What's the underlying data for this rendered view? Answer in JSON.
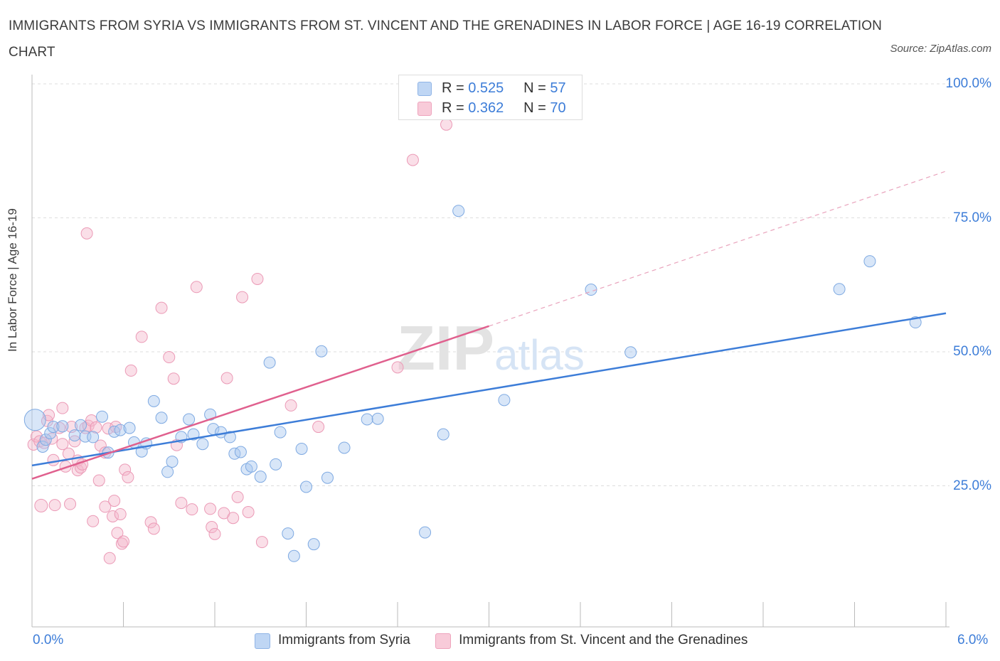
{
  "title": "IMMIGRANTS FROM SYRIA VS IMMIGRANTS FROM ST. VINCENT AND THE GRENADINES IN LABOR FORCE | AGE 16-19 CORRELATION CHART",
  "source": "Source: ZipAtlas.com",
  "watermark": "ZIPatlas",
  "legend_top": {
    "rows": [
      {
        "r_label": "R = ",
        "r_value": "0.525",
        "n_label": "N = ",
        "n_value": "57",
        "color": "#a9c8f0"
      },
      {
        "r_label": "R = ",
        "r_value": "0.362",
        "n_label": "N = ",
        "n_value": "70",
        "color": "#f5b8cc"
      }
    ]
  },
  "legend_bottom": [
    "Immigrants from Syria",
    "Immigrants from St. Vincent and the Grenadines"
  ],
  "colors": {
    "blue": "#3d7dd8",
    "blue_fill": "#a9c8f0",
    "pink": "#e0608e",
    "pink_fill": "#f5b8cc",
    "grid": "#dddddd",
    "axis_label": "#3d7dd8"
  },
  "chart_data": {
    "type": "scatter",
    "title": "IMMIGRANTS FROM SYRIA VS IMMIGRANTS FROM ST. VINCENT AND THE GRENADINES IN LABOR FORCE | AGE 16-19 CORRELATION CHART",
    "xlabel": "",
    "ylabel": "In Labor Force | Age 16-19",
    "xlim": [
      0,
      6
    ],
    "ylim": [
      0,
      100
    ],
    "x_tick_labels": [
      "0.0%",
      "6.0%"
    ],
    "y_tick_labels": [
      "25.0%",
      "50.0%",
      "75.0%",
      "100.0%"
    ],
    "y_ticks": [
      25,
      50,
      75,
      100
    ],
    "grid": true,
    "legend_position": "bottom",
    "series": [
      {
        "name": "Immigrants from Syria",
        "color": "#3d7dd8",
        "R": 0.525,
        "N": 57,
        "trend": {
          "x": [
            0,
            6
          ],
          "y": [
            28.8,
            57.2
          ],
          "dashed_extension": false
        },
        "points": [
          [
            0.02,
            37.3
          ],
          [
            0.07,
            32.3
          ],
          [
            0.09,
            33.6
          ],
          [
            0.12,
            34.8
          ],
          [
            0.14,
            36.0
          ],
          [
            0.2,
            36.1
          ],
          [
            0.28,
            34.4
          ],
          [
            0.32,
            36.3
          ],
          [
            0.35,
            34.2
          ],
          [
            0.4,
            34.1
          ],
          [
            0.46,
            37.9
          ],
          [
            0.5,
            31.2
          ],
          [
            0.54,
            35.1
          ],
          [
            0.58,
            35.4
          ],
          [
            0.64,
            35.8
          ],
          [
            0.67,
            33.1
          ],
          [
            0.72,
            31.4
          ],
          [
            0.75,
            32.9
          ],
          [
            0.8,
            40.8
          ],
          [
            0.85,
            37.7
          ],
          [
            0.89,
            27.6
          ],
          [
            0.92,
            29.5
          ],
          [
            0.98,
            34.1
          ],
          [
            1.03,
            37.4
          ],
          [
            1.06,
            34.6
          ],
          [
            1.12,
            32.8
          ],
          [
            1.17,
            38.3
          ],
          [
            1.19,
            35.6
          ],
          [
            1.24,
            35.0
          ],
          [
            1.3,
            34.1
          ],
          [
            1.33,
            31.0
          ],
          [
            1.37,
            31.3
          ],
          [
            1.41,
            28.1
          ],
          [
            1.44,
            28.6
          ],
          [
            1.5,
            26.7
          ],
          [
            1.56,
            48.0
          ],
          [
            1.6,
            29.0
          ],
          [
            1.63,
            35.0
          ],
          [
            1.68,
            16.1
          ],
          [
            1.72,
            11.9
          ],
          [
            1.77,
            31.9
          ],
          [
            1.8,
            24.8
          ],
          [
            1.85,
            14.1
          ],
          [
            1.9,
            50.1
          ],
          [
            1.94,
            26.5
          ],
          [
            2.05,
            32.1
          ],
          [
            2.2,
            37.4
          ],
          [
            2.27,
            37.5
          ],
          [
            2.58,
            16.3
          ],
          [
            2.7,
            34.6
          ],
          [
            2.8,
            76.3
          ],
          [
            3.1,
            41.0
          ],
          [
            3.67,
            61.6
          ],
          [
            3.93,
            49.9
          ],
          [
            5.3,
            61.7
          ],
          [
            5.5,
            66.9
          ],
          [
            5.8,
            55.5
          ]
        ]
      },
      {
        "name": "Immigrants from St. Vincent and the Grenadines",
        "color": "#e0608e",
        "R": 0.362,
        "N": 70,
        "trend": {
          "x": [
            0,
            3.0
          ],
          "y": [
            26.3,
            54.8
          ],
          "dashed_to": [
            6,
            83.7
          ]
        },
        "points": [
          [
            0.01,
            32.7
          ],
          [
            0.03,
            34.2
          ],
          [
            0.05,
            33.3
          ],
          [
            0.08,
            33.0
          ],
          [
            0.1,
            37.1
          ],
          [
            0.13,
            33.8
          ],
          [
            0.14,
            29.8
          ],
          [
            0.15,
            21.4
          ],
          [
            0.18,
            35.8
          ],
          [
            0.2,
            32.8
          ],
          [
            0.2,
            39.5
          ],
          [
            0.22,
            28.6
          ],
          [
            0.24,
            31.0
          ],
          [
            0.25,
            21.6
          ],
          [
            0.26,
            36.0
          ],
          [
            0.28,
            33.3
          ],
          [
            0.3,
            29.7
          ],
          [
            0.3,
            27.9
          ],
          [
            0.32,
            28.4
          ],
          [
            0.33,
            29.0
          ],
          [
            0.35,
            35.8
          ],
          [
            0.36,
            72.1
          ],
          [
            0.37,
            36.2
          ],
          [
            0.39,
            37.2
          ],
          [
            0.4,
            18.4
          ],
          [
            0.42,
            35.9
          ],
          [
            0.44,
            26.0
          ],
          [
            0.45,
            32.5
          ],
          [
            0.48,
            31.2
          ],
          [
            0.48,
            21.1
          ],
          [
            0.5,
            35.7
          ],
          [
            0.51,
            11.5
          ],
          [
            0.53,
            19.3
          ],
          [
            0.54,
            22.2
          ],
          [
            0.55,
            36.0
          ],
          [
            0.56,
            16.2
          ],
          [
            0.58,
            19.7
          ],
          [
            0.59,
            14.2
          ],
          [
            0.6,
            14.6
          ],
          [
            0.61,
            28.0
          ],
          [
            0.63,
            26.6
          ],
          [
            0.65,
            46.5
          ],
          [
            0.72,
            52.8
          ],
          [
            0.78,
            18.2
          ],
          [
            0.8,
            17.0
          ],
          [
            0.85,
            58.2
          ],
          [
            0.9,
            49.0
          ],
          [
            0.93,
            45.0
          ],
          [
            0.95,
            32.6
          ],
          [
            0.98,
            21.8
          ],
          [
            1.05,
            20.6
          ],
          [
            1.08,
            62.1
          ],
          [
            1.17,
            20.7
          ],
          [
            1.18,
            17.3
          ],
          [
            1.2,
            16.0
          ],
          [
            1.26,
            19.9
          ],
          [
            1.28,
            45.1
          ],
          [
            1.32,
            19.0
          ],
          [
            1.35,
            22.9
          ],
          [
            1.38,
            60.2
          ],
          [
            1.42,
            20.1
          ],
          [
            1.48,
            63.6
          ],
          [
            1.51,
            14.5
          ],
          [
            1.7,
            40.0
          ],
          [
            1.88,
            36.0
          ],
          [
            2.4,
            47.1
          ],
          [
            2.5,
            85.8
          ],
          [
            2.72,
            92.4
          ],
          [
            0.06,
            21.3
          ],
          [
            0.11,
            38.2
          ]
        ]
      }
    ]
  }
}
